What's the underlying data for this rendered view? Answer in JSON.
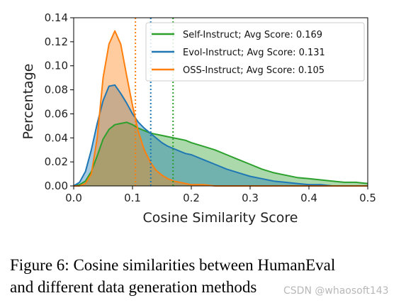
{
  "chart_data": {
    "type": "area",
    "title": "",
    "xlabel": "Cosine Similarity Score",
    "ylabel": "Percentage",
    "xlim": [
      0.0,
      0.5
    ],
    "ylim": [
      0.0,
      0.14
    ],
    "x_ticks": [
      "0.0",
      "0.1",
      "0.2",
      "0.3",
      "0.4",
      "0.5"
    ],
    "y_ticks": [
      "0.00",
      "0.02",
      "0.04",
      "0.06",
      "0.08",
      "0.10",
      "0.12",
      "0.14"
    ],
    "grid": false,
    "legend_position": "top-right",
    "x": [
      0.0,
      0.01,
      0.02,
      0.03,
      0.04,
      0.05,
      0.06,
      0.07,
      0.08,
      0.09,
      0.1,
      0.11,
      0.12,
      0.13,
      0.14,
      0.15,
      0.16,
      0.17,
      0.18,
      0.19,
      0.2,
      0.22,
      0.24,
      0.26,
      0.28,
      0.3,
      0.32,
      0.34,
      0.36,
      0.38,
      0.4,
      0.42,
      0.44,
      0.46,
      0.48,
      0.5
    ],
    "series": [
      {
        "name": "Self-Instruct; Avg Score: 0.169",
        "color": "#2ca02c",
        "avg": 0.169,
        "values": [
          0.0,
          0.001,
          0.004,
          0.012,
          0.025,
          0.039,
          0.047,
          0.051,
          0.052,
          0.053,
          0.051,
          0.048,
          0.046,
          0.044,
          0.043,
          0.042,
          0.041,
          0.04,
          0.039,
          0.038,
          0.036,
          0.033,
          0.03,
          0.026,
          0.022,
          0.018,
          0.014,
          0.011,
          0.009,
          0.007,
          0.006,
          0.005,
          0.004,
          0.003,
          0.003,
          0.002
        ]
      },
      {
        "name": "Evol-Instruct; Avg Score: 0.131",
        "color": "#1f77b4",
        "avg": 0.131,
        "values": [
          0.0,
          0.003,
          0.012,
          0.03,
          0.052,
          0.071,
          0.083,
          0.084,
          0.077,
          0.069,
          0.06,
          0.053,
          0.048,
          0.044,
          0.04,
          0.036,
          0.033,
          0.031,
          0.029,
          0.027,
          0.026,
          0.022,
          0.018,
          0.014,
          0.011,
          0.008,
          0.006,
          0.004,
          0.003,
          0.002,
          0.001,
          0.001,
          0.0,
          0.0,
          0.0,
          0.0
        ]
      },
      {
        "name": "OSS-Instruct; Avg Score: 0.105",
        "color": "#ff7f0e",
        "avg": 0.105,
        "values": [
          0.0,
          0.0,
          0.002,
          0.01,
          0.04,
          0.09,
          0.118,
          0.129,
          0.118,
          0.092,
          0.067,
          0.045,
          0.03,
          0.02,
          0.013,
          0.009,
          0.006,
          0.004,
          0.003,
          0.002,
          0.001,
          0.001,
          0.0,
          0.0,
          0.0,
          0.0,
          0.0,
          0.0,
          0.0,
          0.0,
          0.0,
          0.0,
          0.0,
          0.0,
          0.0,
          0.0
        ]
      }
    ]
  },
  "caption": {
    "line1": "Figure 6: Cosine similarities between HumanEval",
    "line2": "and different data generation methods"
  },
  "watermark": "CSDN @whaosoft143"
}
